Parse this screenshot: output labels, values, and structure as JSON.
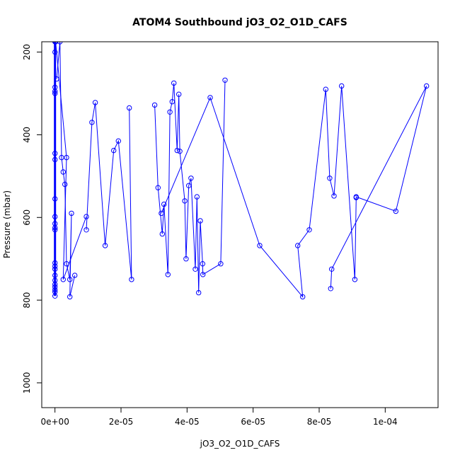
{
  "chart_data": {
    "type": "line",
    "title": "ATOM4 Southbound jO3_O2_O1D_CAFS",
    "xlabel": "jO3_O2_O1D_CAFS",
    "ylabel": "Pressure (mbar)",
    "xlim": [
      -4e-06,
      0.000116
    ],
    "ylim": [
      1060,
      175
    ],
    "y_reversed": true,
    "x_ticks": [
      0,
      2e-05,
      4e-05,
      6e-05,
      8e-05,
      0.0001
    ],
    "x_tick_labels": [
      "0e+00",
      "2e-05",
      "4e-05",
      "6e-05",
      "8e-05",
      "1e-04"
    ],
    "y_ticks": [
      200,
      400,
      600,
      800,
      1000
    ],
    "y_tick_labels": [
      "200",
      "400",
      "600",
      "800",
      "1000"
    ],
    "series_color": "#0000ff",
    "grid": false,
    "legend": "none",
    "series": [
      {
        "x": [
          0,
          0,
          0,
          0,
          0,
          0,
          0,
          0,
          0,
          0,
          0,
          0,
          0,
          0,
          0,
          0,
          0,
          0,
          0,
          0,
          0,
          0
        ],
        "y": [
          200,
          285,
          295,
          300,
          445,
          460,
          555,
          598,
          615,
          625,
          630,
          710,
          718,
          725,
          740,
          752,
          762,
          768,
          775,
          780,
          790,
          175
        ]
      },
      {
        "x": [
          5e-07,
          1.5e-06,
          2e-06,
          2.5e-06,
          3e-06,
          3.5e-06,
          4.5e-06,
          5e-06,
          4.5e-06,
          6e-06
        ],
        "y": [
          265,
          175,
          455,
          490,
          520,
          712,
          750,
          590,
          792,
          740
        ]
      },
      {
        "x": [
          2e-07,
          3.5e-06,
          2.5e-06,
          9.5e-06
        ],
        "y": [
          175,
          455,
          750,
          598
        ]
      },
      {
        "x": [
          9.5e-06,
          1.12e-05,
          1.22e-05,
          1.52e-05,
          1.78e-05,
          1.92e-05,
          2.32e-05,
          2.25e-05
        ],
        "y": [
          630,
          370,
          322,
          668,
          438,
          415,
          750,
          335
        ]
      },
      {
        "x": [
          3.02e-05,
          3.12e-05,
          3.25e-05,
          3.3e-05,
          3.42e-05,
          3.48e-05,
          3.55e-05,
          3.6e-05,
          3.7e-05,
          3.75e-05,
          3.78e-05,
          3.93e-05,
          3.97e-05,
          4.05e-05,
          4.12e-05,
          4.25e-05,
          4.3e-05,
          4.35e-05,
          4.4e-05,
          4.47e-05,
          4.48e-05,
          5.02e-05,
          5.15e-05
        ],
        "y": [
          328,
          528,
          640,
          568,
          738,
          345,
          320,
          275,
          438,
          302,
          440,
          560,
          700,
          523,
          505,
          725,
          550,
          782,
          608,
          712,
          738,
          712,
          268
        ]
      },
      {
        "x": [
          3.22e-05,
          4.7e-05,
          6.2e-05,
          7.5e-05,
          7.35e-05,
          7.7e-05,
          8.2e-05,
          8.32e-05,
          8.45e-05,
          8.68e-05,
          9.08e-05,
          9.12e-05,
          9.12e-05,
          0.0001032,
          0.0001125,
          8.38e-05,
          8.35e-05
        ],
        "y": [
          590,
          310,
          668,
          792,
          668,
          630,
          290,
          505,
          548,
          282,
          750,
          552,
          550,
          585,
          282,
          725,
          772
        ]
      }
    ]
  }
}
